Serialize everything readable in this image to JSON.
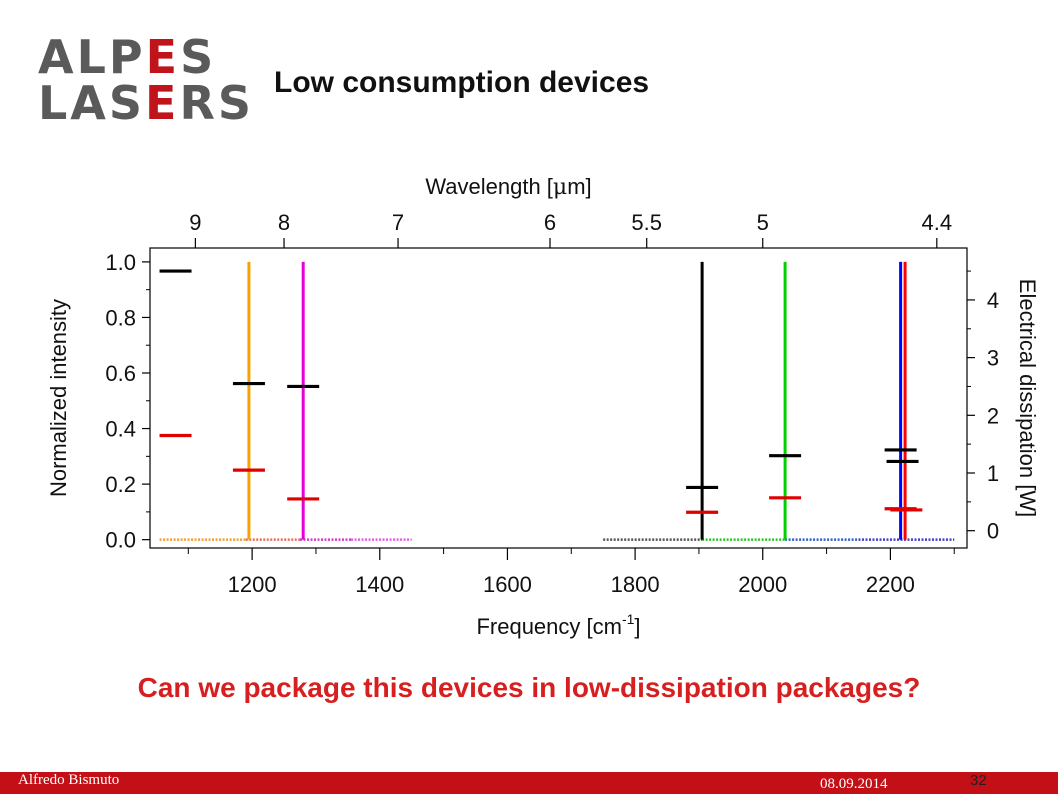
{
  "logo": {
    "line1_a": "ALP",
    "line1_b": "E",
    "line1_c": "S",
    "line2_a": "LAS",
    "line2_b": "E",
    "line2_c": "RS"
  },
  "slide_title": "Low consumption devices",
  "question": "Can we package this devices in low-dissipation packages?",
  "footer": {
    "author": "Alfredo Bismuto",
    "date": "08.09.2014",
    "page": "32"
  },
  "colors": {
    "accent": "#c30f16",
    "question": "#d71f1f"
  },
  "chart_data": {
    "type": "scatter",
    "title": "",
    "xlabel": "Frequency [cm",
    "xlabel_sup": "-1",
    "xlabel_end": "]",
    "xlim": [
      1040,
      2320
    ],
    "x_ticks": [
      1200,
      1400,
      1600,
      1800,
      2000,
      2200
    ],
    "x_tick_labels": [
      "1200",
      "1400",
      "1600",
      "1800",
      "2000",
      "2200"
    ],
    "x_minor_ticks": [
      1100,
      1300,
      1500,
      1700,
      1900,
      2100,
      2300
    ],
    "ylabel_left": "Normalized intensity",
    "ylim_left": [
      -0.03,
      1.05
    ],
    "y_ticks_left": [
      0.0,
      0.2,
      0.4,
      0.6,
      0.8,
      1.0
    ],
    "y_tick_labels_left": [
      "0.0",
      "0.2",
      "0.4",
      "0.6",
      "0.8",
      "1.0"
    ],
    "ylabel_right": "Electrical dissipation [W]",
    "ylim_right": [
      -0.3,
      4.9
    ],
    "y_ticks_right": [
      0,
      1,
      2,
      3,
      4
    ],
    "y_tick_labels_right": [
      "0",
      "1",
      "2",
      "3",
      "4"
    ],
    "top_axis_label_a": "Wavelength [",
    "top_axis_label_mu": "μ",
    "top_axis_label_b": "m]",
    "top_ticks": [
      {
        "label": "9",
        "freq": 1111.1
      },
      {
        "label": "8",
        "freq": 1250
      },
      {
        "label": "7",
        "freq": 1428.6
      },
      {
        "label": "6",
        "freq": 1666.7
      },
      {
        "label": "5.5",
        "freq": 1818.2
      },
      {
        "label": "5",
        "freq": 2000
      },
      {
        "label": "4.4",
        "freq": 2272.7
      }
    ],
    "spectral_lines": [
      {
        "freq": 1195,
        "intensity": 1.0,
        "color": "#f5a300"
      },
      {
        "freq": 1280,
        "intensity": 1.0,
        "color": "#e600d6"
      },
      {
        "freq": 1905,
        "intensity": 1.0,
        "color": "#000000"
      },
      {
        "freq": 2035,
        "intensity": 1.0,
        "color": "#00d000"
      },
      {
        "freq": 2216,
        "intensity": 1.0,
        "color": "#0000ff"
      },
      {
        "freq": 2223,
        "intensity": 1.0,
        "color": "#ff0000"
      }
    ],
    "baseline_bands": [
      {
        "from": 1055,
        "to": 1190,
        "color": "#f0a030"
      },
      {
        "from": 1190,
        "to": 1275,
        "color": "#e07060"
      },
      {
        "from": 1275,
        "to": 1355,
        "color": "#d040c0"
      },
      {
        "from": 1355,
        "to": 1450,
        "color": "#e060e0"
      },
      {
        "from": 1750,
        "to": 1905,
        "color": "#555555"
      },
      {
        "from": 1905,
        "to": 2035,
        "color": "#30c030"
      },
      {
        "from": 2035,
        "to": 2150,
        "color": "#3060c0"
      },
      {
        "from": 2150,
        "to": 2300,
        "color": "#4040c0"
      }
    ],
    "dissipation_markers": [
      {
        "freq": 1080,
        "power": 4.5,
        "color": "#000000"
      },
      {
        "freq": 1080,
        "power": 1.65,
        "color": "#e00000"
      },
      {
        "freq": 1195,
        "power": 2.55,
        "color": "#000000"
      },
      {
        "freq": 1195,
        "power": 1.05,
        "color": "#e00000"
      },
      {
        "freq": 1280,
        "power": 2.5,
        "color": "#000000"
      },
      {
        "freq": 1280,
        "power": 0.55,
        "color": "#e00000"
      },
      {
        "freq": 1905,
        "power": 0.75,
        "color": "#000000"
      },
      {
        "freq": 1905,
        "power": 0.32,
        "color": "#e00000"
      },
      {
        "freq": 2035,
        "power": 1.3,
        "color": "#000000"
      },
      {
        "freq": 2035,
        "power": 0.57,
        "color": "#e00000"
      },
      {
        "freq": 2216,
        "power": 1.4,
        "color": "#000000"
      },
      {
        "freq": 2219,
        "power": 1.2,
        "color": "#000000"
      },
      {
        "freq": 2216,
        "power": 0.38,
        "color": "#e00000"
      },
      {
        "freq": 2225,
        "power": 0.36,
        "color": "#e00000"
      }
    ]
  }
}
